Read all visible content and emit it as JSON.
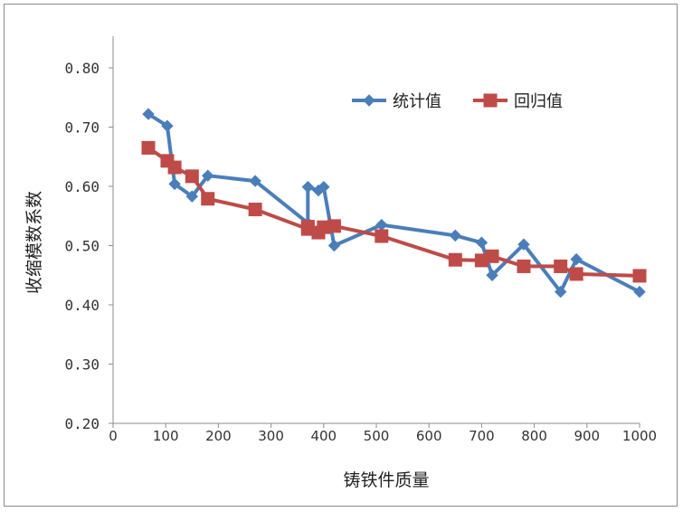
{
  "chart_data": {
    "type": "line",
    "title": "",
    "xlabel": "铸铁件质量",
    "ylabel": "收缩模数系数",
    "xlim": [
      0,
      1000
    ],
    "ylim": [
      0.2,
      0.8
    ],
    "x_ticks": [
      "0",
      "100",
      "200",
      "300",
      "400",
      "500",
      "600",
      "700",
      "800",
      "900",
      "1000"
    ],
    "y_ticks": [
      "0.20",
      "0.30",
      "0.40",
      "0.50",
      "0.60",
      "0.70",
      "0.80"
    ],
    "legend_position": "top-right",
    "grid": false,
    "series": [
      {
        "name": "统计值",
        "color": "#4a7ebb",
        "marker": "diamond",
        "x": [
          67,
          103,
          117,
          150,
          180,
          270,
          370,
          370,
          390,
          400,
          420,
          510,
          650,
          700,
          720,
          780,
          850,
          880,
          1000
        ],
        "y": [
          0.722,
          0.702,
          0.604,
          0.583,
          0.618,
          0.609,
          0.538,
          0.599,
          0.593,
          0.599,
          0.5,
          0.535,
          0.517,
          0.505,
          0.45,
          0.502,
          0.422,
          0.477,
          0.422
        ]
      },
      {
        "name": "回归值",
        "color": "#be4b48",
        "marker": "square",
        "x": [
          67,
          103,
          117,
          150,
          180,
          270,
          370,
          370,
          390,
          400,
          420,
          510,
          650,
          700,
          720,
          780,
          850,
          880,
          1000
        ],
        "y": [
          0.665,
          0.643,
          0.632,
          0.617,
          0.579,
          0.561,
          0.528,
          0.532,
          0.522,
          0.531,
          0.533,
          0.516,
          0.476,
          0.475,
          0.482,
          0.465,
          0.465,
          0.452,
          0.449
        ]
      }
    ]
  }
}
